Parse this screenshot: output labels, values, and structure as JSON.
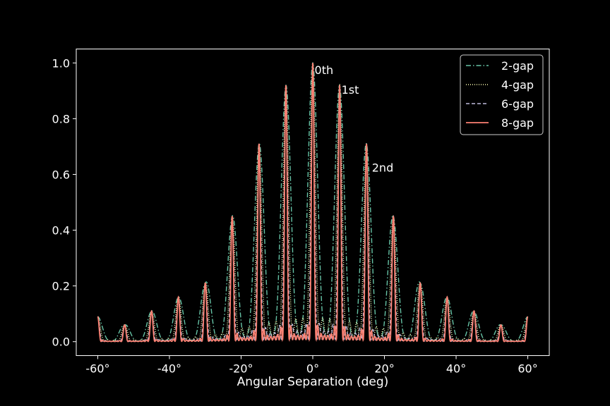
{
  "chart_data": {
    "type": "line",
    "title": "",
    "xlabel": "Angular Separation (deg)",
    "ylabel": "",
    "xlim": [
      -66,
      66
    ],
    "ylim": [
      -0.05,
      1.05
    ],
    "x_range": [
      -60,
      60
    ],
    "grid": false,
    "legend_position": "top-right",
    "x_ticks": [
      -60,
      -40,
      -20,
      0,
      20,
      40,
      60
    ],
    "x_tick_labels": [
      "-60°",
      "-40°",
      "-20°",
      "0°",
      "20°",
      "40°",
      "60°"
    ],
    "y_ticks": [
      0.0,
      0.2,
      0.4,
      0.6,
      0.8,
      1.0
    ],
    "y_tick_labels": [
      "0.0",
      "0.2",
      "0.4",
      "0.6",
      "0.8",
      "1.0"
    ],
    "series": [
      {
        "name": "2-gap",
        "gaps": 2,
        "color": "#66c2a5",
        "style": "dashdot"
      },
      {
        "name": "4-gap",
        "gaps": 4,
        "color": "#ffffb3",
        "style": "dotted"
      },
      {
        "name": "6-gap",
        "gaps": 6,
        "color": "#bebada",
        "style": "dashed"
      },
      {
        "name": "8-gap",
        "gaps": 8,
        "color": "#fb8072",
        "style": "solid"
      }
    ],
    "peak_envelope": {
      "x": [
        0,
        7.5,
        15,
        22.5,
        30,
        52.5,
        60
      ],
      "y": [
        1.0,
        0.92,
        0.71,
        0.45,
        0.21,
        0.06,
        0.09
      ]
    },
    "annotations": [
      {
        "text": "0th",
        "x": 0.5,
        "y": 0.96
      },
      {
        "text": "1st",
        "x": 8.0,
        "y": 0.89
      },
      {
        "text": "2nd",
        "x": 16.5,
        "y": 0.61
      }
    ],
    "colors": {
      "background": "#000000",
      "foreground": "#ffffff"
    }
  }
}
